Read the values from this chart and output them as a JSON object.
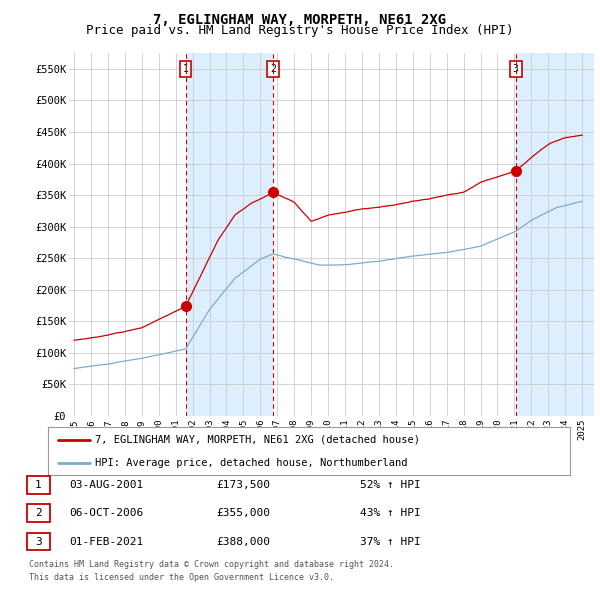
{
  "title": "7, EGLINGHAM WAY, MORPETH, NE61 2XG",
  "subtitle": "Price paid vs. HM Land Registry's House Price Index (HPI)",
  "ylim": [
    0,
    575000
  ],
  "yticks": [
    0,
    50000,
    100000,
    150000,
    200000,
    250000,
    300000,
    350000,
    400000,
    450000,
    500000,
    550000
  ],
  "ytick_labels": [
    "£0",
    "£50K",
    "£100K",
    "£150K",
    "£200K",
    "£250K",
    "£300K",
    "£350K",
    "£400K",
    "£450K",
    "£500K",
    "£550K"
  ],
  "red_line_color": "#cc0000",
  "blue_line_color": "#7aadcf",
  "shade_color": "#ddeeff",
  "vline_color": "#dd0000",
  "grid_color": "#cccccc",
  "background_color": "#ffffff",
  "sale1": {
    "date_str": "03-AUG-2001",
    "price": 173500,
    "label": "1",
    "pct": "52% ↑ HPI",
    "x_year": 2001.58
  },
  "sale2": {
    "date_str": "06-OCT-2006",
    "price": 355000,
    "label": "2",
    "pct": "43% ↑ HPI",
    "x_year": 2006.75
  },
  "sale3": {
    "date_str": "01-FEB-2021",
    "price": 388000,
    "label": "3",
    "pct": "37% ↑ HPI",
    "x_year": 2021.08
  },
  "legend_label_red": "7, EGLINGHAM WAY, MORPETH, NE61 2XG (detached house)",
  "legend_label_blue": "HPI: Average price, detached house, Northumberland",
  "footer1": "Contains HM Land Registry data © Crown copyright and database right 2024.",
  "footer2": "This data is licensed under the Open Government Licence v3.0.",
  "title_fontsize": 10,
  "subtitle_fontsize": 9,
  "x_start": 1995,
  "x_end": 2025,
  "xlim_left": 1994.7,
  "xlim_right": 2025.7
}
